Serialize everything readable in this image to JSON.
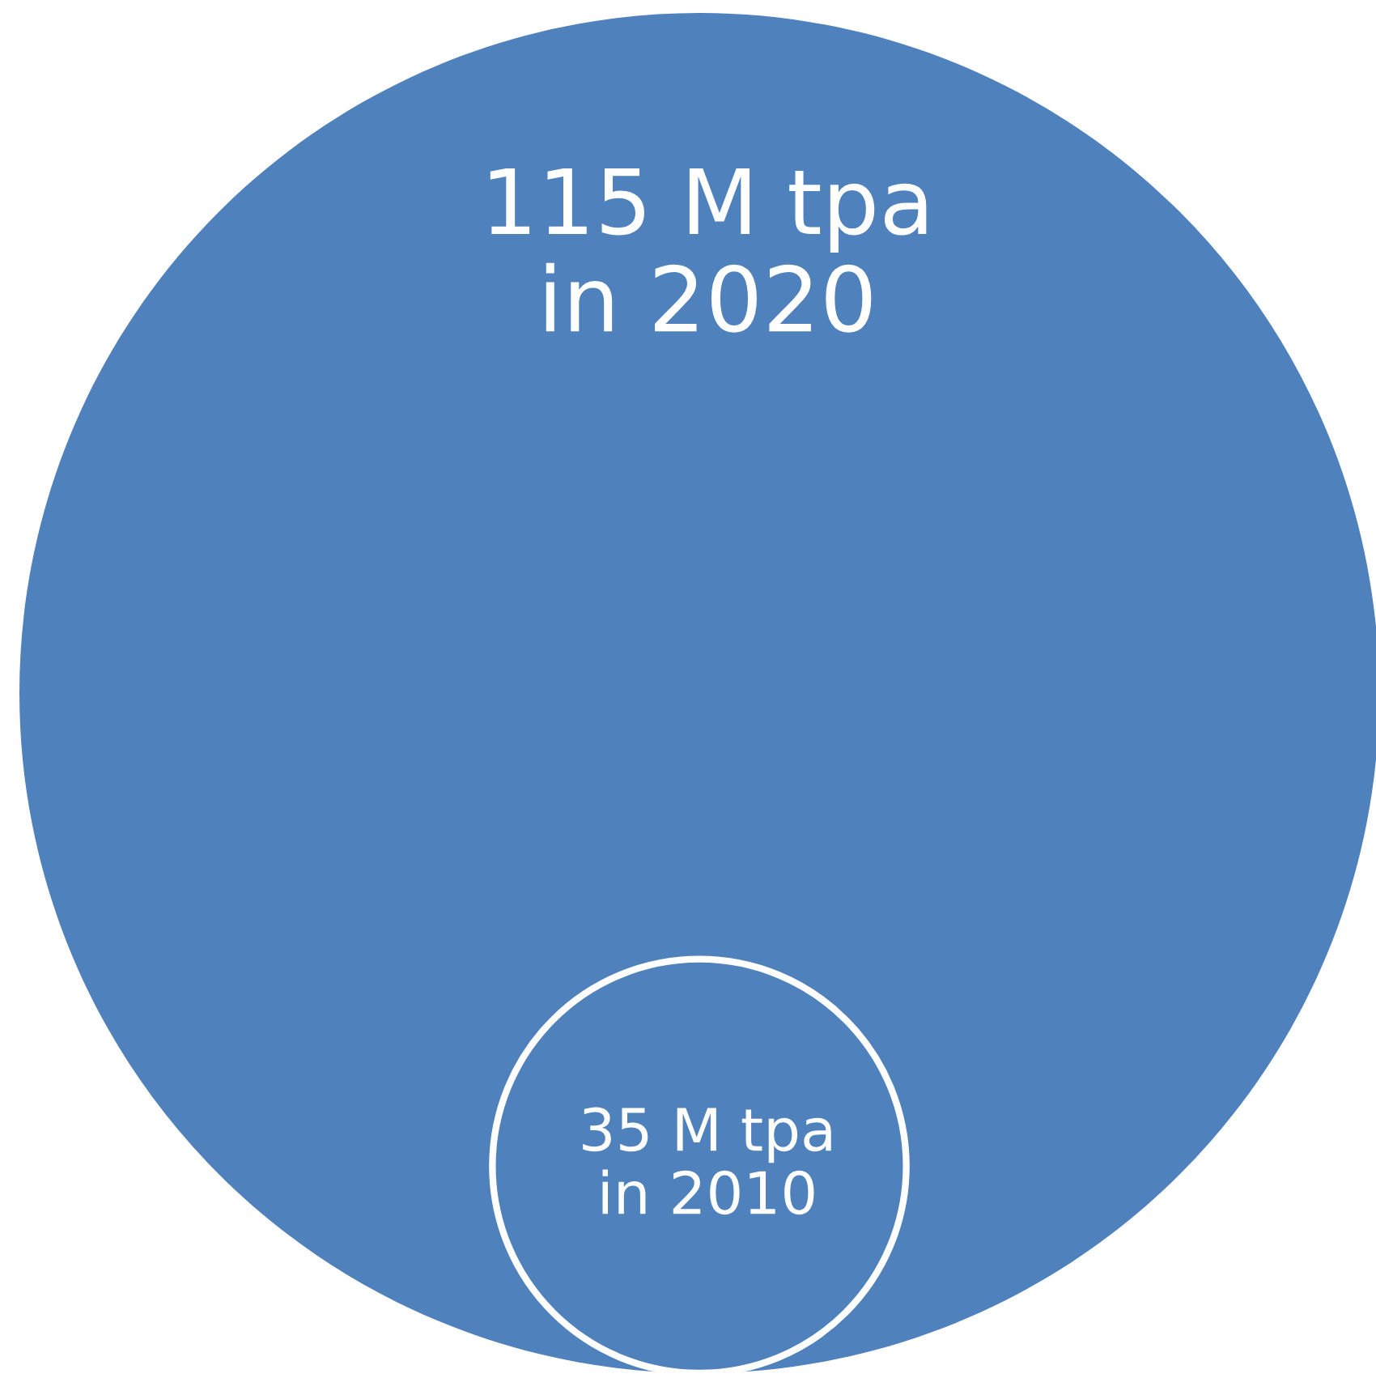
{
  "chart_data": {
    "type": "other",
    "values": [
      115,
      35
    ],
    "value_labels": [
      "115 M tpa\nin 2020",
      "35 M tpa\nin 2010"
    ],
    "colors": [
      "#4f81bd",
      "#4f81bd"
    ]
  }
}
